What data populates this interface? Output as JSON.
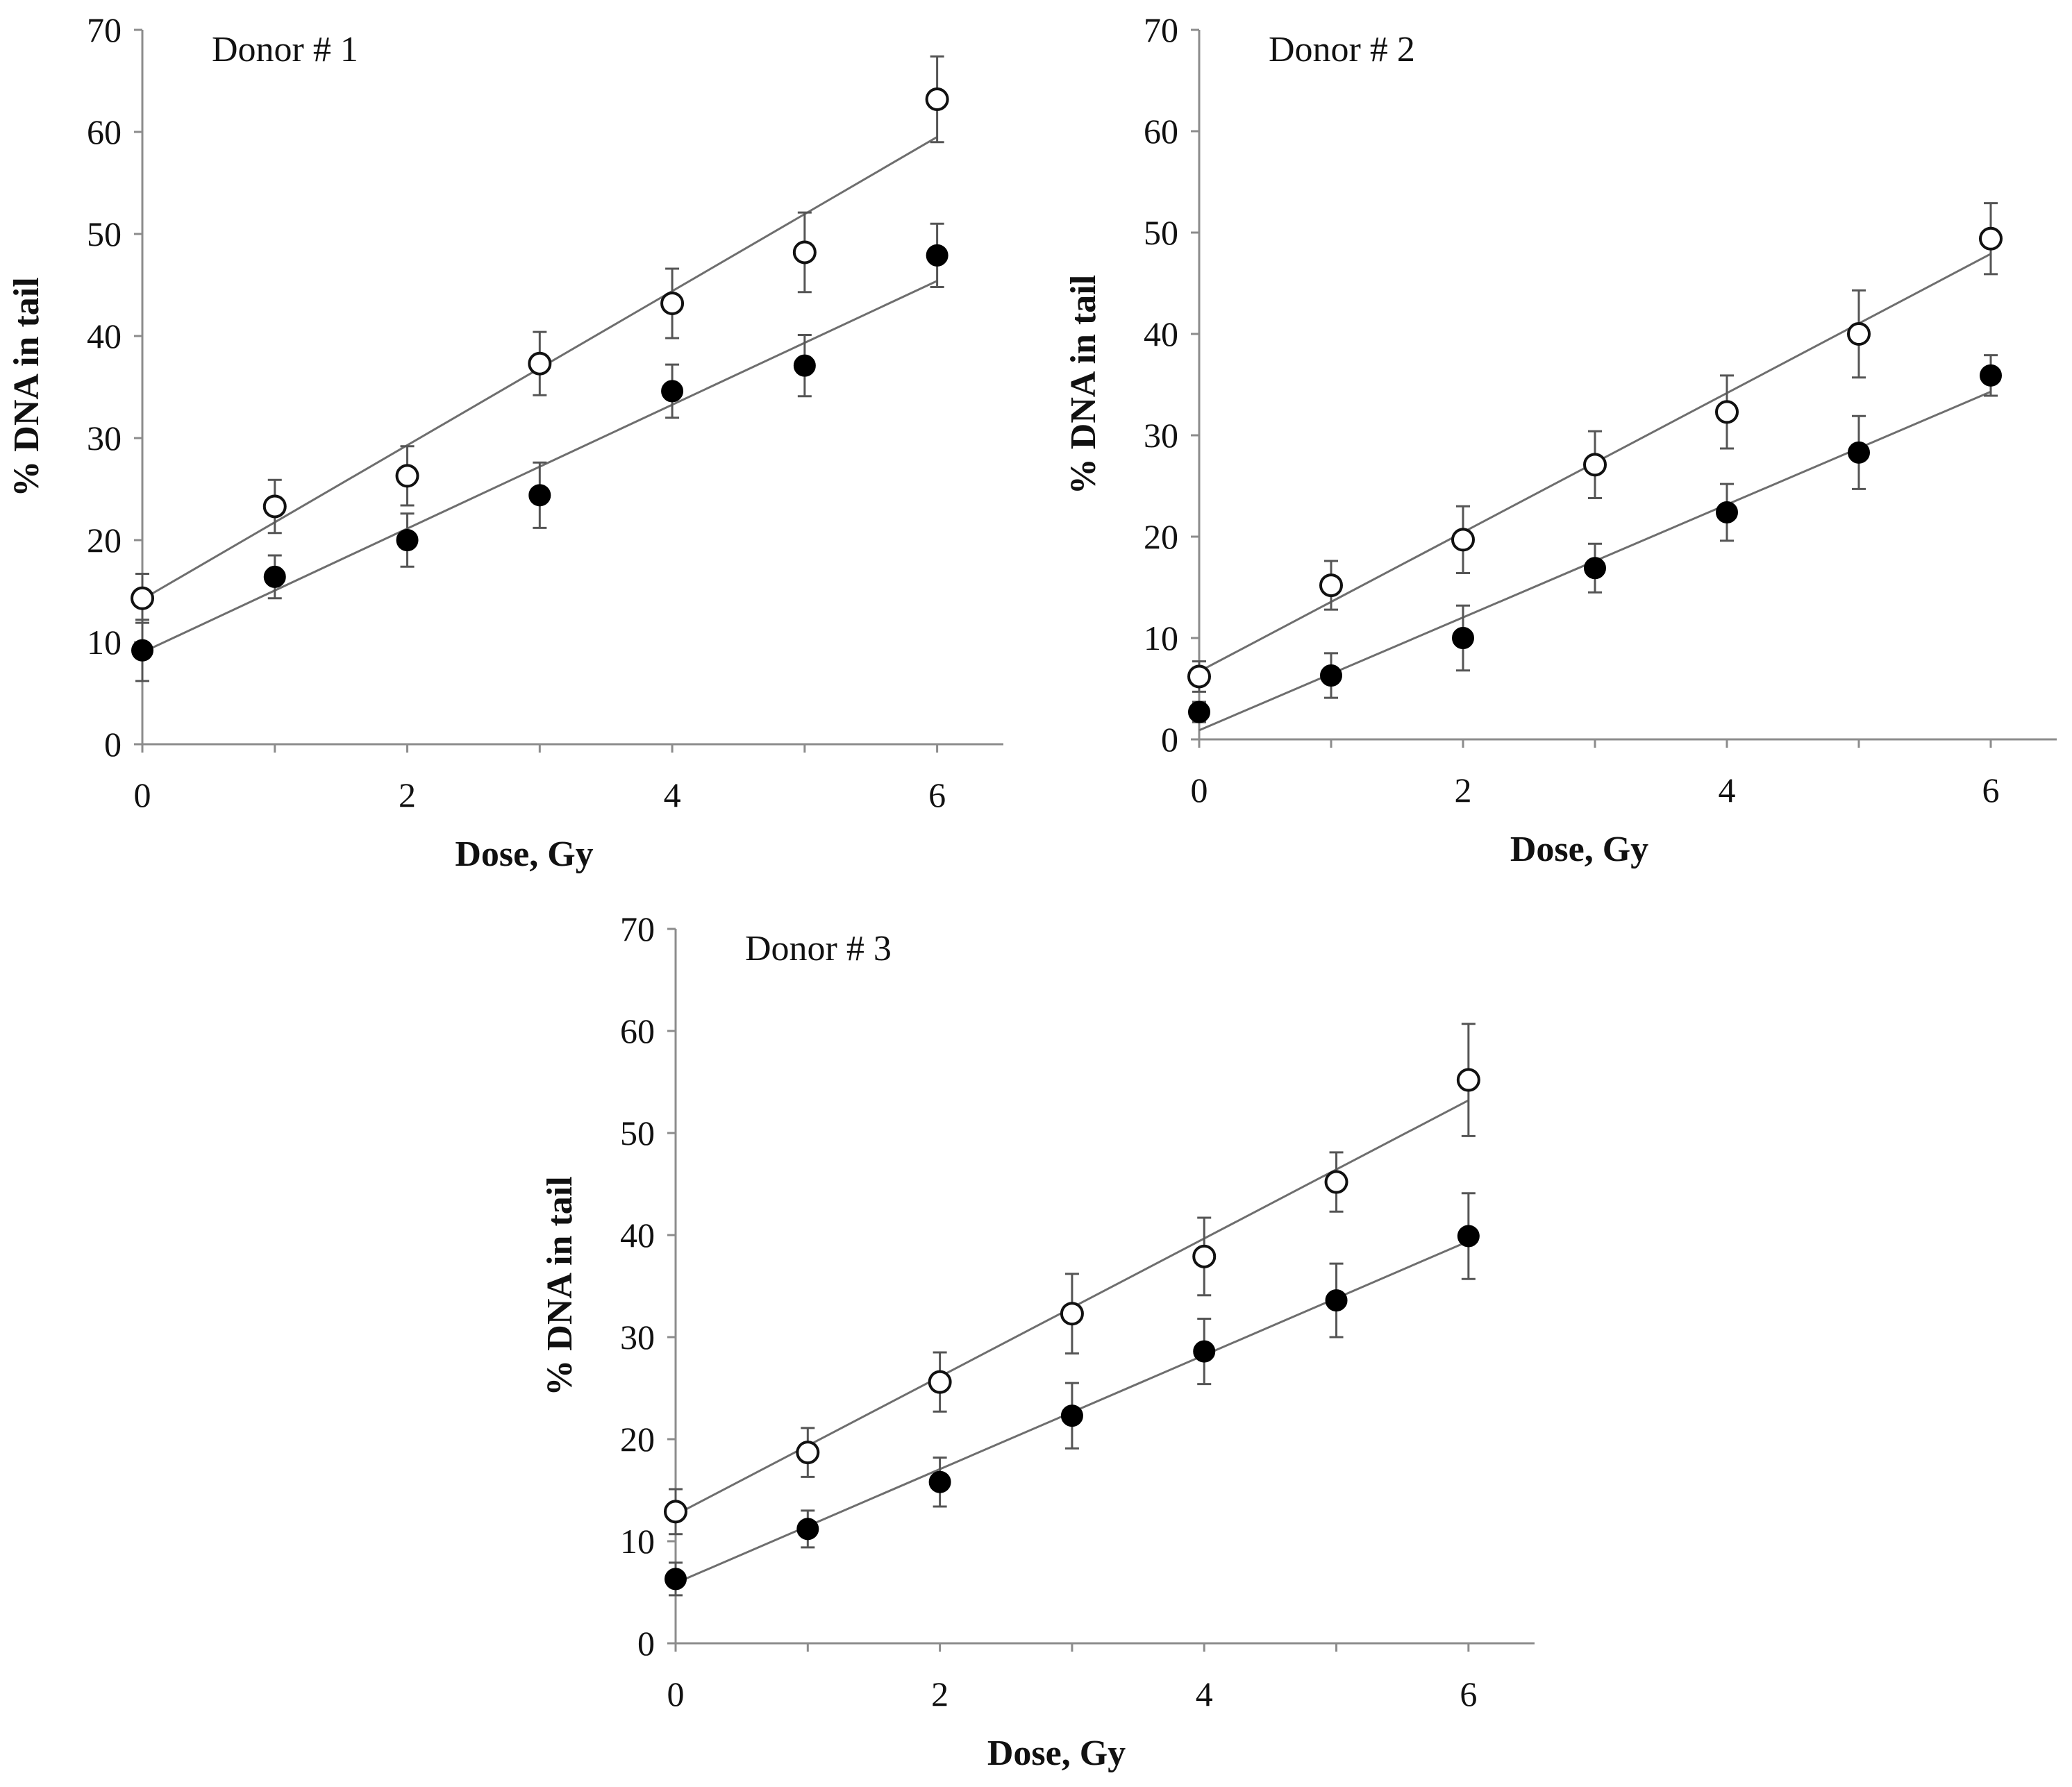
{
  "chart_data": [
    {
      "type": "scatter",
      "title": "Donor # 1",
      "xlabel": "Dose, Gy",
      "ylabel": "% DNA in tail",
      "xlim": [
        0,
        6.5
      ],
      "ylim": [
        0,
        70
      ],
      "xticks": [
        "0",
        "2",
        "4",
        "6"
      ],
      "yticks": [
        "0",
        "10",
        "20",
        "30",
        "40",
        "50",
        "60",
        "70"
      ],
      "grid": false,
      "legend": "none",
      "series": [
        {
          "name": "open circles",
          "marker": "open",
          "x": [
            0,
            1,
            2,
            3,
            4,
            5,
            6
          ],
          "y": [
            14.3,
            23.3,
            26.3,
            37.3,
            43.2,
            48.2,
            63.2
          ],
          "error": [
            2.4,
            2.6,
            2.9,
            3.1,
            3.4,
            3.9,
            4.2
          ],
          "fit": [
            14.2,
            59.5
          ]
        },
        {
          "name": "filled circles",
          "marker": "filled",
          "x": [
            0,
            1,
            2,
            3,
            4,
            5,
            6
          ],
          "y": [
            9.2,
            16.4,
            20.0,
            24.4,
            34.6,
            37.1,
            47.9
          ],
          "error": [
            3.0,
            2.1,
            2.6,
            3.2,
            2.6,
            3.0,
            3.1
          ],
          "fit": [
            9.0,
            45.4
          ]
        }
      ]
    },
    {
      "type": "scatter",
      "title": "Donor # 2",
      "xlabel": "Dose, Gy",
      "ylabel": "% DNA in tail",
      "xlim": [
        0,
        6.5
      ],
      "ylim": [
        0,
        70
      ],
      "xticks": [
        "0",
        "2",
        "4",
        "6"
      ],
      "yticks": [
        "0",
        "10",
        "20",
        "30",
        "40",
        "50",
        "60",
        "70"
      ],
      "grid": false,
      "legend": "none",
      "series": [
        {
          "name": "open circles",
          "marker": "open",
          "x": [
            0,
            1,
            2,
            3,
            4,
            5,
            6
          ],
          "y": [
            6.2,
            15.2,
            19.7,
            27.1,
            32.3,
            40.0,
            49.4
          ],
          "error": [
            1.5,
            2.4,
            3.3,
            3.3,
            3.6,
            4.3,
            3.5
          ],
          "fit": [
            6.7,
            47.9
          ]
        },
        {
          "name": "filled circles",
          "marker": "filled",
          "x": [
            0,
            1,
            2,
            3,
            4,
            5,
            6
          ],
          "y": [
            2.7,
            6.3,
            10.0,
            16.9,
            22.4,
            28.3,
            35.9
          ],
          "error": [
            1.0,
            2.2,
            3.2,
            2.4,
            2.8,
            3.6,
            2.0
          ],
          "fit": [
            0.9,
            34.3
          ]
        }
      ]
    },
    {
      "type": "scatter",
      "title": "Donor # 3",
      "xlabel": "Dose, Gy",
      "ylabel": "% DNA in tail",
      "xlim": [
        0,
        6.5
      ],
      "ylim": [
        0,
        70
      ],
      "xticks": [
        "0",
        "2",
        "4",
        "6"
      ],
      "yticks": [
        "0",
        "10",
        "20",
        "30",
        "40",
        "50",
        "60",
        "70"
      ],
      "grid": false,
      "legend": "none",
      "series": [
        {
          "name": "open circles",
          "marker": "open",
          "x": [
            0,
            1,
            2,
            3,
            4,
            5,
            6
          ],
          "y": [
            12.9,
            18.7,
            25.6,
            32.3,
            37.9,
            45.2,
            55.2
          ],
          "error": [
            2.2,
            2.4,
            2.9,
            3.9,
            3.8,
            2.9,
            5.5
          ],
          "fit": [
            12.6,
            53.2
          ]
        },
        {
          "name": "filled circles",
          "marker": "filled",
          "x": [
            0,
            1,
            2,
            3,
            4,
            5,
            6
          ],
          "y": [
            6.3,
            11.2,
            15.8,
            22.3,
            28.6,
            33.6,
            39.9
          ],
          "error": [
            1.6,
            1.8,
            2.4,
            3.2,
            3.2,
            3.6,
            4.2
          ],
          "fit": [
            5.9,
            39.4
          ]
        }
      ]
    }
  ]
}
